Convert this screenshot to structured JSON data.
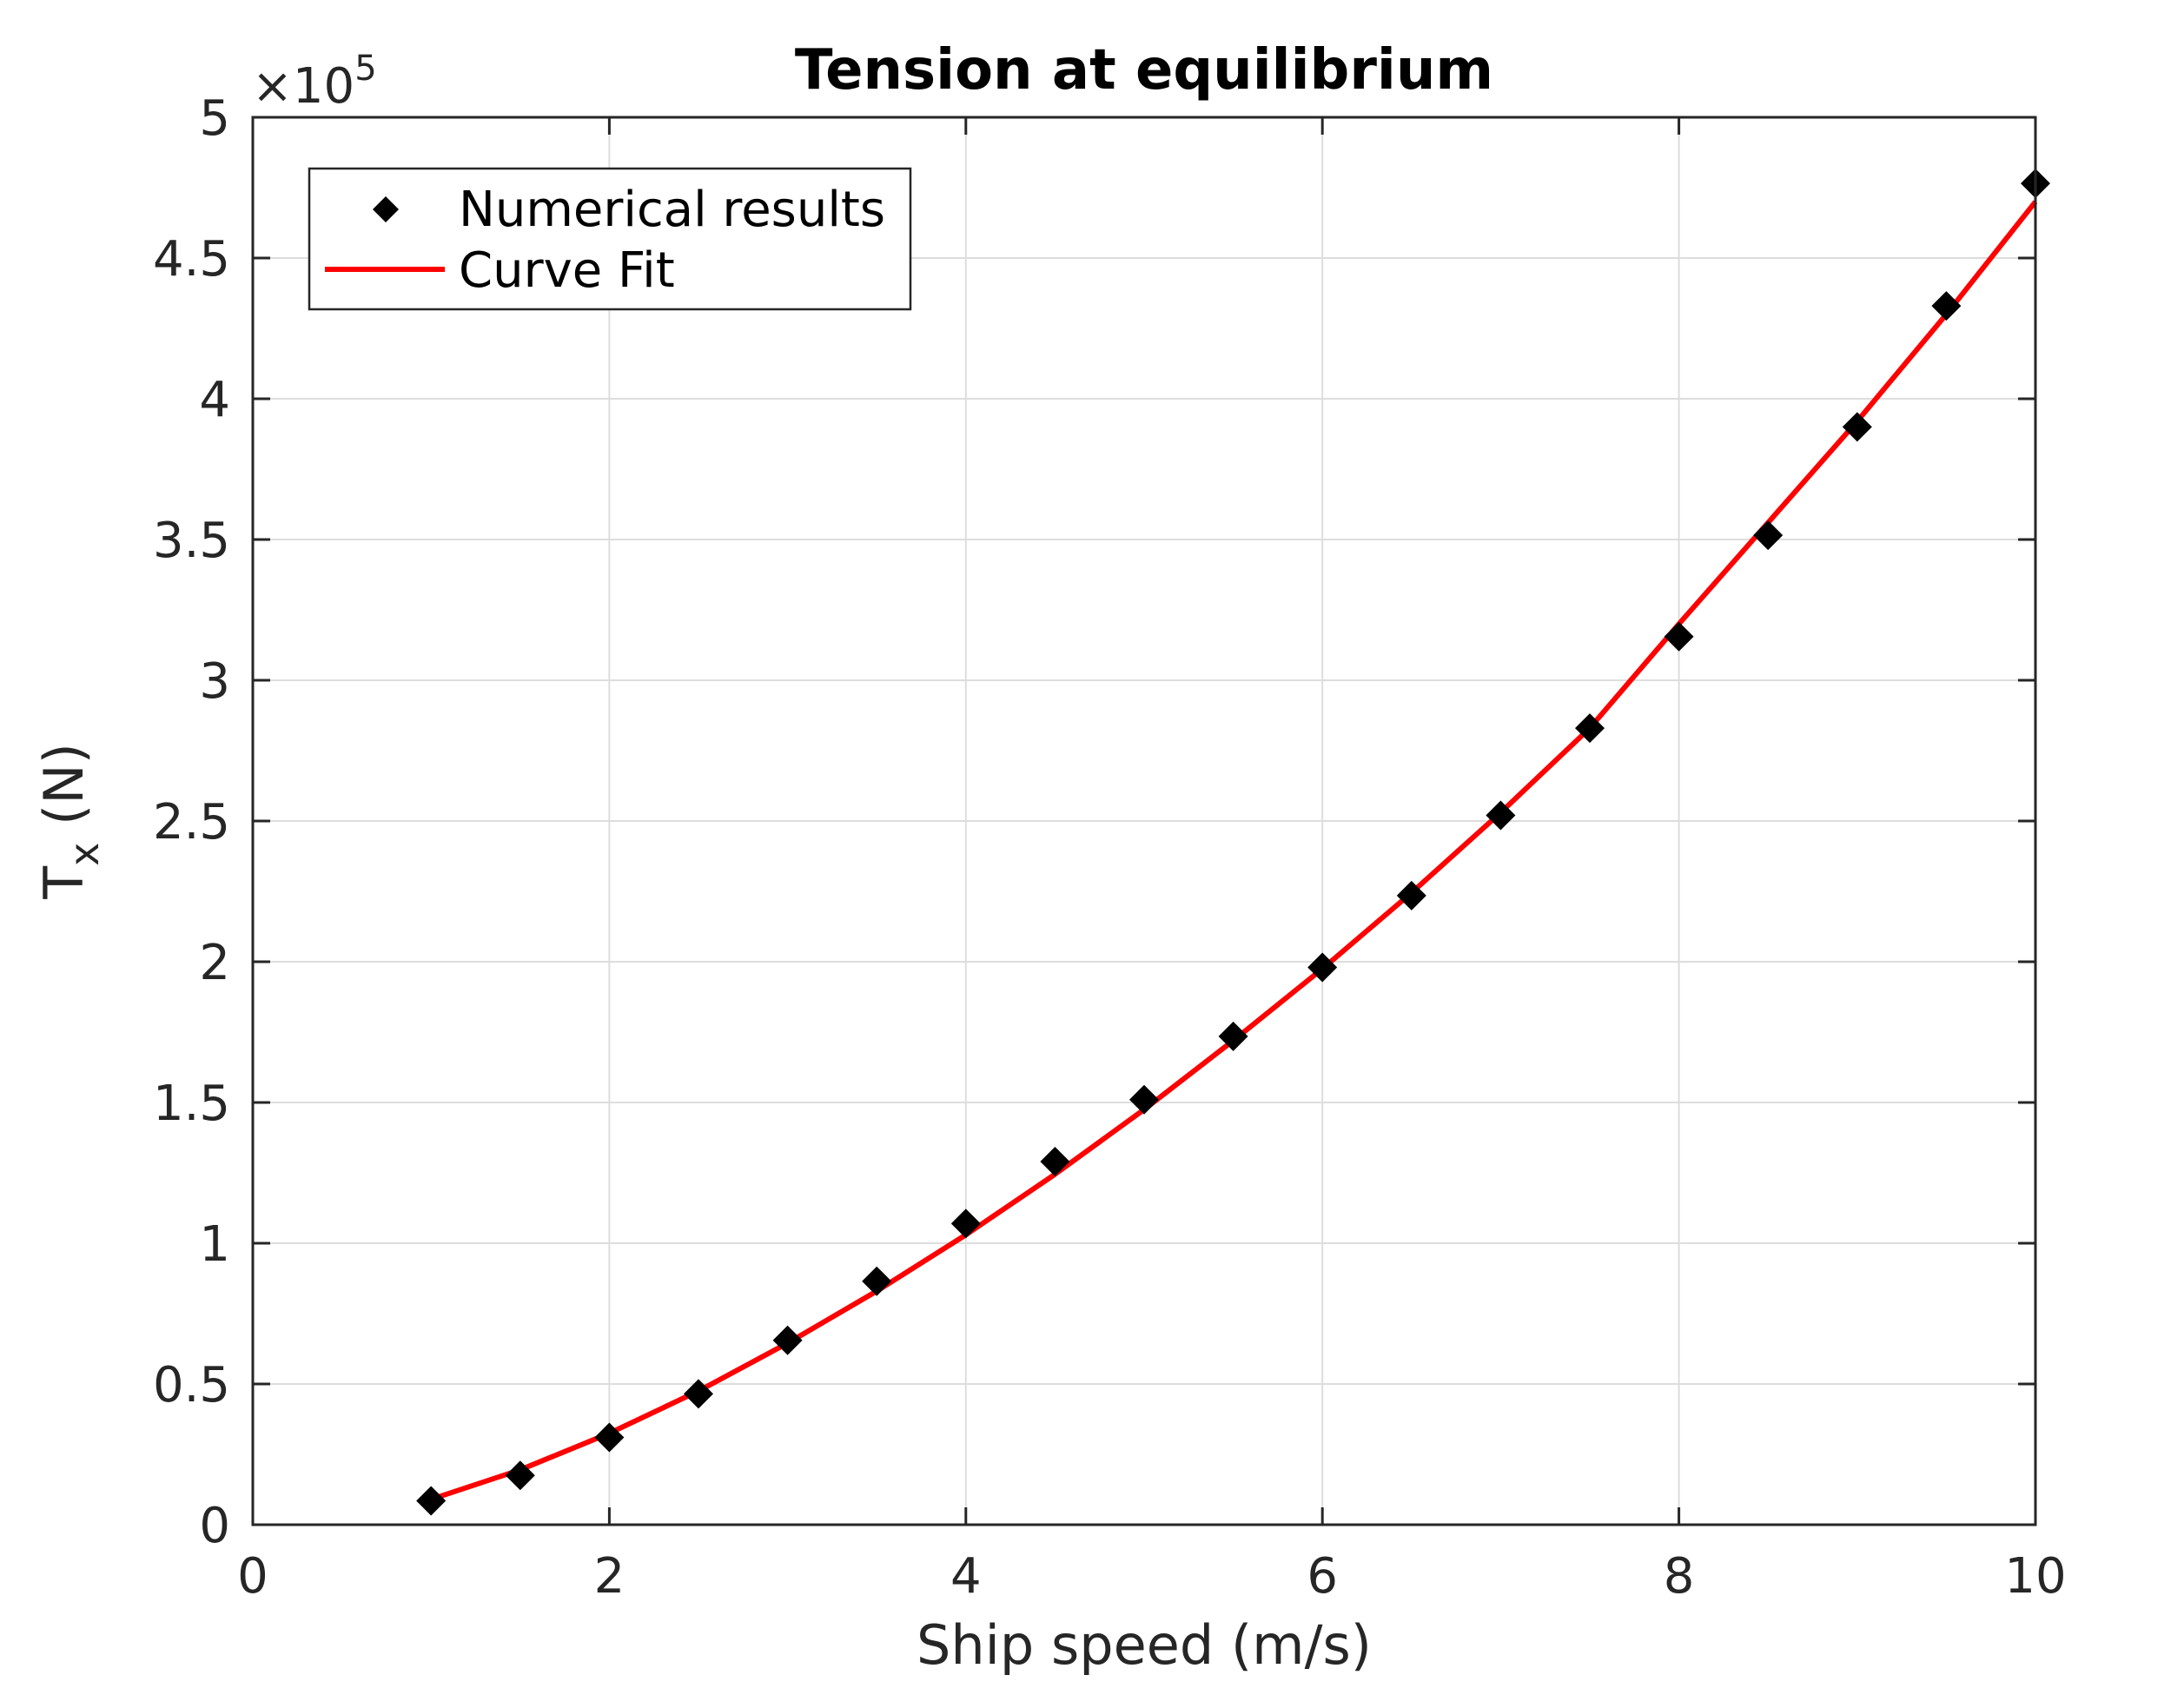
{
  "chart_data": {
    "type": "scatter",
    "title": "Tension at equilibrium",
    "xlabel": "Ship speed (m/s)",
    "ylabel": {
      "main": "T",
      "subscript": "x",
      "unit": " (N)"
    },
    "xlim": [
      0,
      10
    ],
    "ylim": [
      0,
      500000
    ],
    "xticks": [
      0,
      2,
      4,
      6,
      8,
      10
    ],
    "xtick_labels": [
      "0",
      "2",
      "4",
      "6",
      "8",
      "10"
    ],
    "yticks": [
      0,
      50000,
      100000,
      150000,
      200000,
      250000,
      300000,
      350000,
      400000,
      450000,
      500000
    ],
    "ytick_labels": [
      "0",
      "0.5",
      "1",
      "1.5",
      "2",
      "2.5",
      "3",
      "3.5",
      "4",
      "4.5",
      "5"
    ],
    "y_exponent": {
      "base": "×10",
      "power": "5"
    },
    "grid": true,
    "legend_position": "top-left",
    "series": [
      {
        "name": "Numerical results",
        "kind": "markers",
        "color": "#000000",
        "x": [
          1,
          1.5,
          2,
          2.5,
          3,
          3.5,
          4,
          4.5,
          5,
          5.5,
          6,
          6.5,
          7,
          7.5,
          8,
          8.5,
          9,
          9.5,
          10
        ],
        "y": [
          8500,
          17500,
          31000,
          46500,
          65500,
          86500,
          107000,
          129000,
          151000,
          173500,
          198000,
          223500,
          252000,
          283000,
          315500,
          351500,
          390000,
          433000,
          476500
        ]
      },
      {
        "name": "Curve Fit",
        "kind": "line",
        "color": "#ff0000",
        "x": [
          1,
          1.5,
          2,
          2.5,
          3,
          3.5,
          4,
          4.5,
          5,
          5.5,
          6,
          6.5,
          7,
          7.5,
          8,
          8.5,
          9,
          9.5,
          10
        ],
        "y": [
          9000,
          19500,
          32500,
          47500,
          64500,
          83000,
          103000,
          124500,
          147500,
          172000,
          197500,
          224500,
          253000,
          283000,
          320000,
          356000,
          392000,
          430000,
          470000
        ]
      }
    ]
  }
}
